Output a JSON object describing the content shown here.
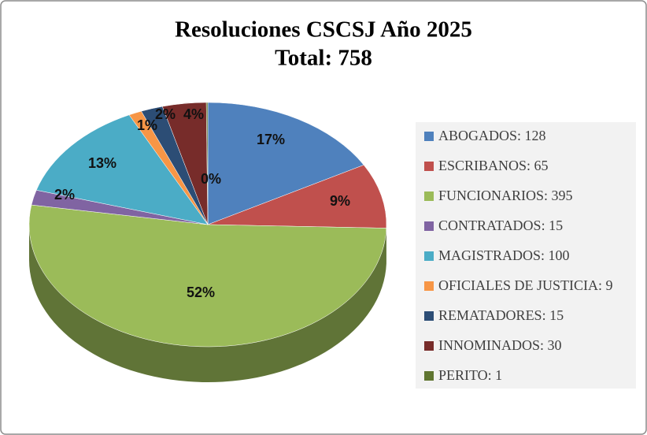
{
  "chart_data": {
    "type": "pie3d",
    "title": "Resoluciones CSCSJ Año 2025",
    "subtitle": "Total: 758",
    "categories": [
      "ABOGADOS: 128",
      "ESCRIBANOS: 65",
      "FUNCIONARIOS: 395",
      "CONTRATADOS: 15",
      "MAGISTRADOS: 100",
      "OFICIALES DE JUSTICIA: 9",
      "REMATADORES: 15",
      "INNOMINADOS: 30",
      "PERITO: 1"
    ],
    "values": [
      128,
      65,
      395,
      15,
      100,
      9,
      15,
      30,
      1
    ],
    "value_labels": [
      "17%",
      "9%",
      "52%",
      "2%",
      "13%",
      "1%",
      "2%",
      "4%",
      "0%"
    ],
    "colors": [
      "#4f81bd",
      "#c0504d",
      "#9bbb59",
      "#8064a2",
      "#4bacc6",
      "#f79646",
      "#2c4d75",
      "#772c2a",
      "#5f7530"
    ],
    "legend": "right"
  }
}
